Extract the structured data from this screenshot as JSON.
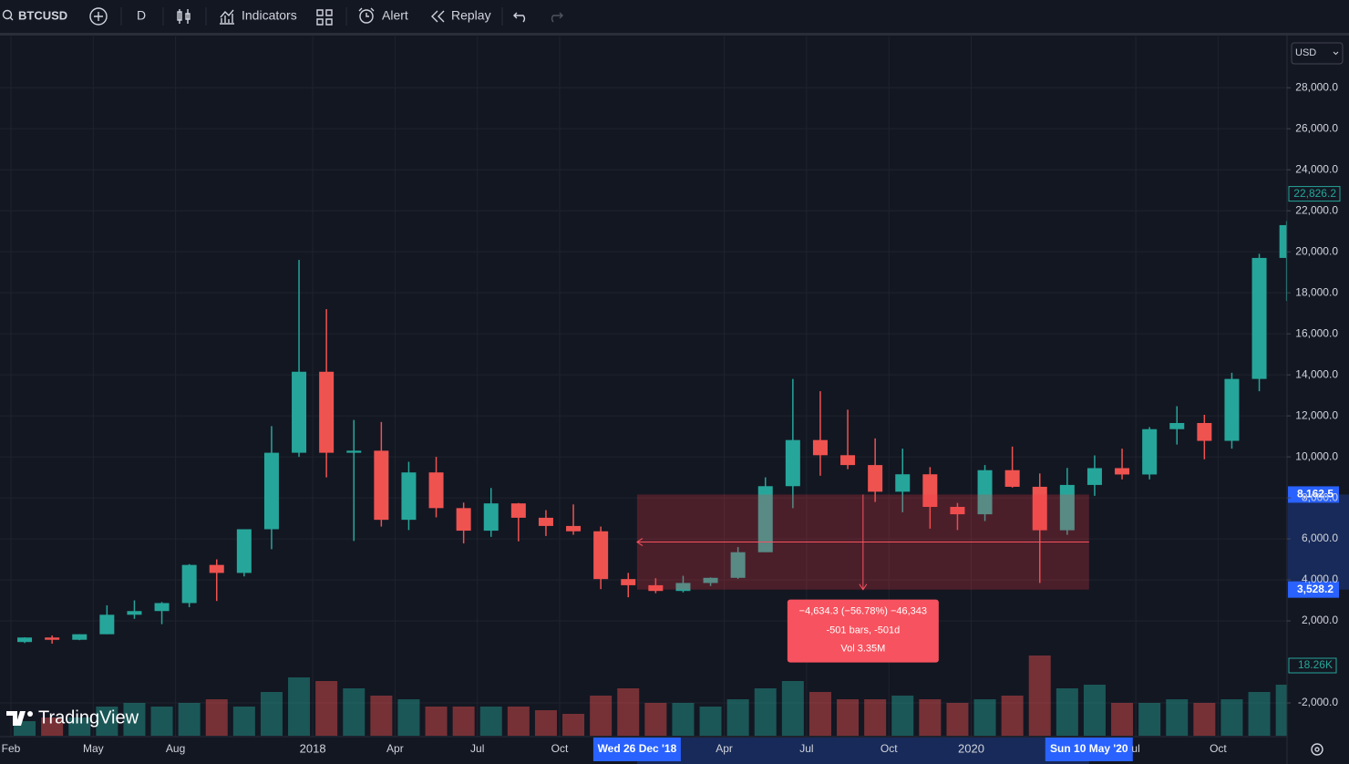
{
  "toolbar": {
    "symbol": "BTCUSD",
    "interval": "D",
    "indicators": "Indicators",
    "alert": "Alert",
    "replay": "Replay"
  },
  "currency": "USD",
  "brand": "TradingView",
  "chart_data": {
    "type": "candlestick",
    "x": [
      "2017-02",
      "2017-03",
      "2017-04",
      "2017-05",
      "2017-06",
      "2017-07",
      "2017-08",
      "2017-09",
      "2017-10",
      "2017-11",
      "2017-12",
      "2018-01",
      "2018-02",
      "2018-03",
      "2018-04",
      "2018-05",
      "2018-06",
      "2018-07",
      "2018-08",
      "2018-09",
      "2018-10",
      "2018-11",
      "2018-12",
      "2019-01",
      "2019-02",
      "2019-03",
      "2019-04",
      "2019-05",
      "2019-06",
      "2019-07",
      "2019-08",
      "2019-09",
      "2019-10",
      "2019-11",
      "2019-12",
      "2020-01",
      "2020-02",
      "2020-03",
      "2020-04",
      "2020-05",
      "2020-06",
      "2020-07",
      "2020-08",
      "2020-09",
      "2020-10",
      "2020-11",
      "2020-12"
    ],
    "open": [
      970,
      1190,
      1080,
      1350,
      2300,
      2480,
      2870,
      4730,
      4340,
      6470,
      10200,
      14150,
      10200,
      10300,
      6930,
      9240,
      7500,
      6400,
      7730,
      7030,
      6630,
      6370,
      4040,
      3740,
      3460,
      3850,
      4100,
      5350,
      8570,
      10820,
      10080,
      9600,
      8300,
      9150,
      7560,
      7200,
      9350,
      8540,
      6420,
      8630,
      9450,
      9140,
      11350,
      11650,
      10780,
      13800,
      19700
    ],
    "high": [
      1200,
      1290,
      1350,
      2760,
      3000,
      2920,
      4770,
      5000,
      6470,
      11500,
      19600,
      17200,
      11800,
      11700,
      9760,
      10000,
      7770,
      8480,
      7750,
      7400,
      7680,
      6600,
      4340,
      4080,
      4200,
      4120,
      5600,
      9000,
      13800,
      13200,
      12300,
      10900,
      10400,
      9500,
      7750,
      9600,
      10500,
      9190,
      9460,
      10070,
      10400,
      11450,
      12470,
      12050,
      14100,
      19900,
      21500
    ],
    "low": [
      920,
      890,
      1060,
      1350,
      2100,
      1840,
      2670,
      2970,
      4170,
      5500,
      10000,
      9000,
      5900,
      6600,
      6430,
      7050,
      5780,
      6100,
      5880,
      6140,
      6200,
      3550,
      3150,
      3350,
      3390,
      3700,
      4050,
      5350,
      7500,
      9080,
      9400,
      7800,
      7300,
      6500,
      6430,
      6870,
      8500,
      3850,
      6200,
      8100,
      8900,
      8900,
      10600,
      9880,
      10400,
      13200,
      17600
    ],
    "close": [
      1190,
      1080,
      1350,
      2300,
      2480,
      2870,
      4730,
      4340,
      6470,
      10200,
      14150,
      10200,
      10300,
      6930,
      9240,
      7500,
      6400,
      7730,
      7030,
      6630,
      6370,
      4040,
      3740,
      3460,
      3850,
      4100,
      5350,
      8570,
      10820,
      10080,
      9600,
      8300,
      9150,
      7560,
      7200,
      9350,
      8540,
      6420,
      8630,
      9450,
      9140,
      11350,
      11650,
      10780,
      13800,
      19700,
      21300
    ],
    "volume": [
      4,
      5,
      5,
      8,
      9,
      8,
      9,
      10,
      8,
      12,
      16,
      15,
      13,
      11,
      10,
      8,
      8,
      8,
      8,
      7,
      6,
      11,
      13,
      9,
      9,
      8,
      10,
      13,
      15,
      12,
      10,
      10,
      11,
      10,
      9,
      10,
      11,
      22,
      13,
      14,
      9,
      9,
      10,
      9,
      10,
      12,
      14
    ],
    "ylim": [
      -3600,
      30500
    ],
    "yticks": [
      {
        "value": -2000,
        "label": "-2,000.0"
      },
      {
        "value": 2000,
        "label": "2,000.0"
      },
      {
        "value": 4000,
        "label": "4,000.0"
      },
      {
        "value": 6000,
        "label": "6,000.0"
      },
      {
        "value": 8000,
        "label": "8,000.0"
      },
      {
        "value": 10000,
        "label": "10,000.0"
      },
      {
        "value": 12000,
        "label": "12,000.0"
      },
      {
        "value": 14000,
        "label": "14,000.0"
      },
      {
        "value": 16000,
        "label": "16,000.0"
      },
      {
        "value": 18000,
        "label": "18,000.0"
      },
      {
        "value": 20000,
        "label": "20,000.0"
      },
      {
        "value": 22000,
        "label": "22,000.0"
      },
      {
        "value": 24000,
        "label": "24,000.0"
      },
      {
        "value": 26000,
        "label": "26,000.0"
      },
      {
        "value": 28000,
        "label": "28,000.0"
      }
    ],
    "xticks": [
      {
        "value": "2017-02",
        "label": "Feb"
      },
      {
        "value": "2017-05",
        "label": "May"
      },
      {
        "value": "2017-08",
        "label": "Aug"
      },
      {
        "value": "2018-01",
        "label": "2018"
      },
      {
        "value": "2018-04",
        "label": "Apr"
      },
      {
        "value": "2018-07",
        "label": "Jul"
      },
      {
        "value": "2018-10",
        "label": "Oct"
      },
      {
        "value": "2019-04",
        "label": "Apr"
      },
      {
        "value": "2019-07",
        "label": "Jul"
      },
      {
        "value": "2019-10",
        "label": "Oct"
      },
      {
        "value": "2020-01",
        "label": "2020"
      },
      {
        "value": "2020-07",
        "label": "ul"
      },
      {
        "value": "2020-10",
        "label": "Oct"
      }
    ],
    "up_color": "#26a69a",
    "down_color": "#ef5350",
    "grid": true,
    "last_price": {
      "value": 22826.2,
      "label": "22,826.2"
    },
    "last_volume": "18.26K",
    "measure": {
      "top": {
        "value": 8162.5,
        "label": "8,162.5"
      },
      "bottom": {
        "value": 3528.2,
        "label": "3,528.2"
      },
      "start": {
        "value": "2018-12-26",
        "label": "Wed 26 Dec '18"
      },
      "end": {
        "value": "2020-05-10",
        "label": "Sun 10 May '20"
      },
      "change": "−4,634.3 (−56.78%) −46,343",
      "range": "-501 bars, -501d",
      "volume": "Vol 3.35M"
    }
  }
}
